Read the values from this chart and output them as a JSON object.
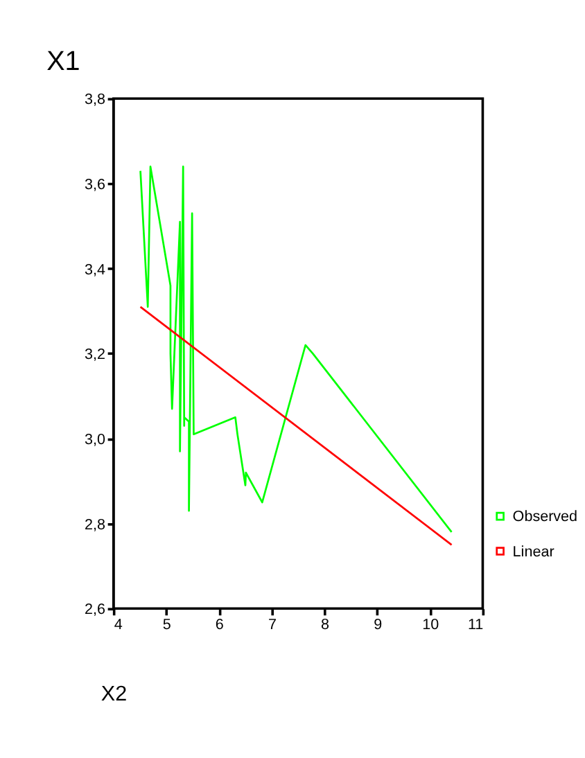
{
  "chart_data": {
    "type": "line",
    "title": "X1",
    "xlim": [
      4,
      11
    ],
    "xticks": [
      4,
      5,
      6,
      7,
      8,
      9,
      10,
      11
    ],
    "ylim": [
      2.6,
      3.8
    ],
    "yticks": [
      {
        "value": 2.6,
        "label": "2,6"
      },
      {
        "value": 2.8,
        "label": "2,8"
      },
      {
        "value": 3.0,
        "label": "3,0"
      },
      {
        "value": 3.2,
        "label": "3,2"
      },
      {
        "value": 3.4,
        "label": "3,4"
      },
      {
        "value": 3.6,
        "label": "3,6"
      },
      {
        "value": 3.8,
        "label": "3,8"
      }
    ],
    "grid": false,
    "legend": "bottom right",
    "marker": "none",
    "line_style": "solid",
    "annotations": [
      "X2"
    ],
    "series": [
      {
        "name": "Observed",
        "color": "#00ff00",
        "x": [
          4.51,
          4.65,
          4.7,
          5.08,
          5.08,
          5.11,
          5.26,
          5.26,
          5.32,
          5.34,
          5.34,
          5.43,
          5.43,
          5.49,
          5.52,
          6.31,
          6.35,
          6.5,
          6.51,
          6.82,
          7.64,
          7.78,
          10.41
        ],
        "values": [
          3.63,
          3.31,
          3.64,
          3.36,
          3.2,
          3.07,
          3.51,
          2.97,
          3.64,
          3.03,
          3.05,
          3.04,
          2.83,
          3.53,
          3.01,
          3.05,
          3.01,
          2.89,
          2.92,
          2.85,
          3.22,
          3.2,
          2.78
        ]
      },
      {
        "name": "Linear",
        "color": "#ff0000",
        "x": [
          4.51,
          10.41
        ],
        "values": [
          3.31,
          2.75
        ]
      }
    ]
  }
}
